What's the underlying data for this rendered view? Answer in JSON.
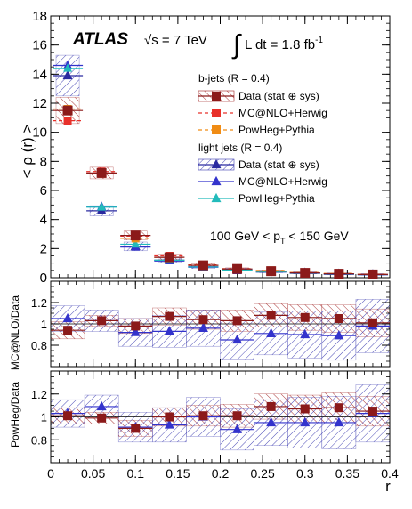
{
  "chart_data": {
    "type": "scatter",
    "atlas_label": "ATLAS",
    "energy_label": "√s = 7 TeV",
    "lumi_label": "∫ L dt = 1.8 fb",
    "lumi_sup": "-1",
    "pt_range_label": "100 GeV < p",
    "pt_range_sub": "T",
    "pt_range_tail": " < 150 GeV",
    "xlabel": "r",
    "xlim": [
      0,
      0.4
    ],
    "x_ticks": [
      "0",
      "0.05",
      "0.1",
      "0.15",
      "0.2",
      "0.25",
      "0.3",
      "0.35",
      "0.4"
    ],
    "x_centers": [
      0.02,
      0.06,
      0.1,
      0.14,
      0.18,
      0.22,
      0.26,
      0.3,
      0.34,
      0.38
    ],
    "bin_edges": [
      0.0,
      0.04,
      0.08,
      0.12,
      0.16,
      0.2,
      0.24,
      0.28,
      0.32,
      0.36,
      0.4
    ],
    "legend": {
      "bjets_header": "b-jets (R = 0.4)",
      "ljets_header": "light jets (R = 0.4)",
      "data_label": "Data (stat ⊕ sys)",
      "mcnlo_label": "MC@NLO+Herwig",
      "powheg_label": "PowHeg+Pythia"
    },
    "colors": {
      "b_data": "#8b1a1a",
      "b_mcnlo": "#e8302a",
      "b_powheg": "#f08c14",
      "l_data": "#2a2aa0",
      "l_mcnlo": "#3333cc",
      "l_powheg": "#22bbbb",
      "b_hatch": "#a02020",
      "l_hatch": "#3a3ab0"
    },
    "panels": [
      {
        "id": "main",
        "ylabel": "< ρ (r) >",
        "ylim": [
          0,
          18
        ],
        "y_ticks": [
          0,
          2,
          4,
          6,
          8,
          10,
          12,
          14,
          16,
          18
        ],
        "series": [
          {
            "name": "b-jets Data",
            "values": [
              11.5,
              7.2,
              2.9,
              1.4,
              0.85,
              0.6,
              0.45,
              0.33,
              0.27,
              0.22
            ],
            "errors": [
              0.9,
              0.4,
              0.3,
              0.15,
              0.1,
              0.08,
              0.07,
              0.06,
              0.05,
              0.05
            ]
          },
          {
            "name": "b-jets MC@NLO+Herwig",
            "values": [
              10.8,
              7.3,
              2.85,
              1.5,
              0.88,
              0.62,
              0.48,
              0.35,
              0.28,
              0.22
            ]
          },
          {
            "name": "b-jets PowHeg+Pythia",
            "values": [
              11.6,
              7.15,
              2.7,
              1.4,
              0.86,
              0.6,
              0.5,
              0.35,
              0.29,
              0.23
            ]
          },
          {
            "name": "light jets Data",
            "values": [
              13.9,
              4.6,
              2.15,
              1.2,
              0.75,
              0.55,
              0.42,
              0.33,
              0.26,
              0.22
            ],
            "errors": [
              1.4,
              0.35,
              0.3,
              0.15,
              0.12,
              0.1,
              0.08,
              0.07,
              0.06,
              0.05
            ]
          },
          {
            "name": "light jets MC@NLO+Herwig",
            "values": [
              14.6,
              4.9,
              2.1,
              1.15,
              0.72,
              0.48,
              0.38,
              0.3,
              0.23,
              0.2
            ]
          },
          {
            "name": "light jets PowHeg+Pythia",
            "values": [
              14.4,
              4.85,
              2.3,
              1.2,
              0.74,
              0.52,
              0.4,
              0.31,
              0.25,
              0.21
            ]
          }
        ]
      },
      {
        "id": "ratio_mcnlo",
        "ylabel": "MC@NLO/Data",
        "ylim": [
          0.6,
          1.4
        ],
        "y_ticks": [
          0.8,
          1,
          1.2
        ],
        "y_tick_labels": [
          "0.8",
          "1",
          "1.2"
        ],
        "series": [
          {
            "name": "b-jets",
            "values": [
              0.94,
              1.03,
              0.98,
              1.07,
              1.04,
              1.03,
              1.08,
              1.06,
              1.05,
              1.01
            ],
            "errors": [
              0.08,
              0.05,
              0.07,
              0.08,
              0.09,
              0.1,
              0.11,
              0.12,
              0.13,
              0.13
            ]
          },
          {
            "name": "light jets",
            "values": [
              1.05,
              1.03,
              0.92,
              0.93,
              0.96,
              0.85,
              0.91,
              0.9,
              0.89,
              0.98
            ],
            "errors": [
              0.12,
              0.1,
              0.13,
              0.15,
              0.17,
              0.18,
              0.2,
              0.22,
              0.23,
              0.25
            ]
          }
        ]
      },
      {
        "id": "ratio_powheg",
        "ylabel": "PowHeg/Data",
        "ylim": [
          0.6,
          1.4
        ],
        "y_ticks": [
          0.8,
          1,
          1.2
        ],
        "y_tick_labels": [
          "0.8",
          "1",
          "1.2"
        ],
        "series": [
          {
            "name": "b-jets",
            "values": [
              1.01,
              0.99,
              0.9,
              1.0,
              1.01,
              1.01,
              1.09,
              1.07,
              1.08,
              1.05
            ],
            "errors": [
              0.07,
              0.05,
              0.07,
              0.08,
              0.09,
              0.1,
              0.11,
              0.12,
              0.13,
              0.13
            ]
          },
          {
            "name": "light jets",
            "values": [
              1.03,
              1.09,
              0.91,
              0.93,
              1.0,
              0.89,
              0.95,
              0.95,
              0.95,
              1.03
            ],
            "errors": [
              0.12,
              0.1,
              0.13,
              0.15,
              0.17,
              0.18,
              0.2,
              0.22,
              0.23,
              0.25
            ]
          }
        ]
      }
    ]
  }
}
